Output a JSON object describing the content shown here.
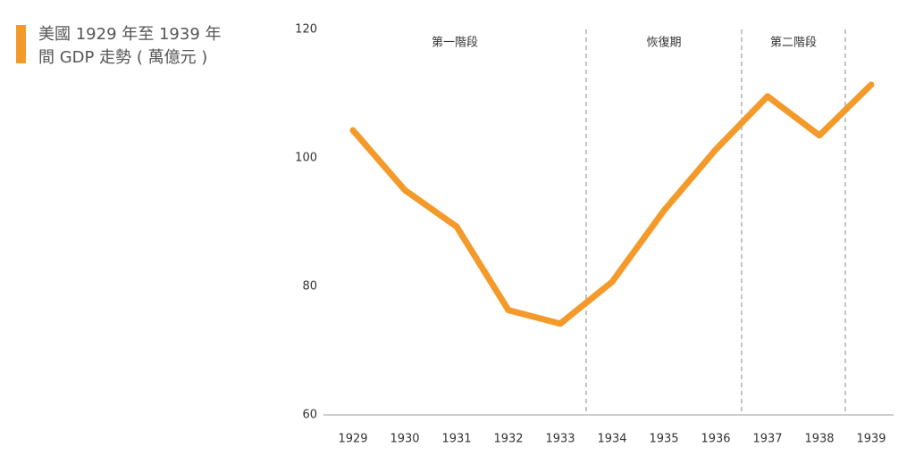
{
  "chart_data": {
    "type": "line",
    "title": [
      "美國 1929 年至 1939 年",
      "間 GDP 走勢 ( 萬億元 )"
    ],
    "categories": [
      "1929",
      "1930",
      "1931",
      "1932",
      "1933",
      "1934",
      "1935",
      "1936",
      "1937",
      "1938",
      "1939"
    ],
    "values": [
      104.3,
      95.0,
      89.3,
      76.3,
      74.2,
      80.7,
      91.8,
      101.3,
      109.6,
      103.5,
      111.4
    ],
    "color": "#f39a2b",
    "ylim": [
      60,
      120
    ],
    "yticks": [
      60,
      80,
      100,
      120
    ],
    "grid": false,
    "phases": [
      {
        "label": "第一階段",
        "start": "1929",
        "end": "1933"
      },
      {
        "label": "恢復期",
        "start": "1934",
        "end": "1936"
      },
      {
        "label": "第二階段",
        "start": "1937",
        "end": "1938"
      }
    ]
  }
}
